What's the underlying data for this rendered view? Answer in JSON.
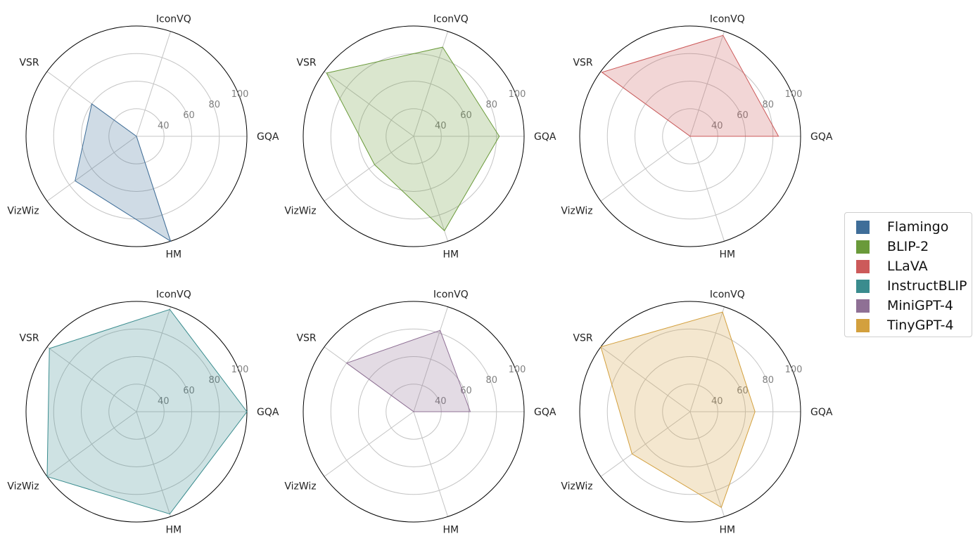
{
  "chart_data": [
    {
      "type": "radar",
      "title": "Flamingo",
      "color": "#3f6e99",
      "axes": [
        "GQA",
        "IconVQ",
        "VSR",
        "VizWiz",
        "HM"
      ],
      "ticks": [
        40,
        60,
        80,
        100
      ],
      "rlim": [
        20,
        100
      ],
      "values": [
        20,
        20,
        60,
        75,
        100
      ]
    },
    {
      "type": "radar",
      "title": "BLIP-2",
      "color": "#6a9a3a",
      "axes": [
        "GQA",
        "IconVQ",
        "VSR",
        "VizWiz",
        "HM"
      ],
      "ticks": [
        40,
        60,
        80,
        100
      ],
      "rlim": [
        20,
        100
      ],
      "values": [
        82,
        88,
        98,
        55,
        92
      ]
    },
    {
      "type": "radar",
      "title": "LLaVA",
      "color": "#cc5a5a",
      "axes": [
        "GQA",
        "IconVQ",
        "VSR",
        "VizWiz",
        "HM"
      ],
      "ticks": [
        40,
        60,
        80,
        100
      ],
      "rlim": [
        20,
        100
      ],
      "values": [
        84,
        97,
        99,
        20,
        20
      ]
    },
    {
      "type": "radar",
      "title": "InstructBLIP",
      "color": "#3a8c8e",
      "axes": [
        "GQA",
        "IconVQ",
        "VSR",
        "VizWiz",
        "HM"
      ],
      "ticks": [
        40,
        60,
        80,
        100
      ],
      "rlim": [
        20,
        100
      ],
      "values": [
        100,
        98,
        98,
        100,
        98
      ]
    },
    {
      "type": "radar",
      "title": "MiniGPT-4",
      "color": "#8f7095",
      "axes": [
        "GQA",
        "IconVQ",
        "VSR",
        "VizWiz",
        "HM"
      ],
      "ticks": [
        40,
        60,
        80,
        100
      ],
      "rlim": [
        20,
        100
      ],
      "values": [
        61,
        82,
        80,
        20,
        20
      ]
    },
    {
      "type": "radar",
      "title": "TinyGPT-4",
      "color": "#d3a03e",
      "axes": [
        "GQA",
        "IconVQ",
        "VSR",
        "VizWiz",
        "HM"
      ],
      "ticks": [
        40,
        60,
        80,
        100
      ],
      "rlim": [
        20,
        100
      ],
      "values": [
        67,
        96,
        100,
        72,
        93
      ]
    }
  ],
  "legend": {
    "items": [
      {
        "label": "Flamingo",
        "color": "#3f6e99"
      },
      {
        "label": "BLIP-2",
        "color": "#6a9a3a"
      },
      {
        "label": "LLaVA",
        "color": "#cc5a5a"
      },
      {
        "label": "InstructBLIP",
        "color": "#3a8c8e"
      },
      {
        "label": "MiniGPT-4",
        "color": "#8f7095"
      },
      {
        "label": "TinyGPT-4",
        "color": "#d3a03e"
      }
    ]
  }
}
